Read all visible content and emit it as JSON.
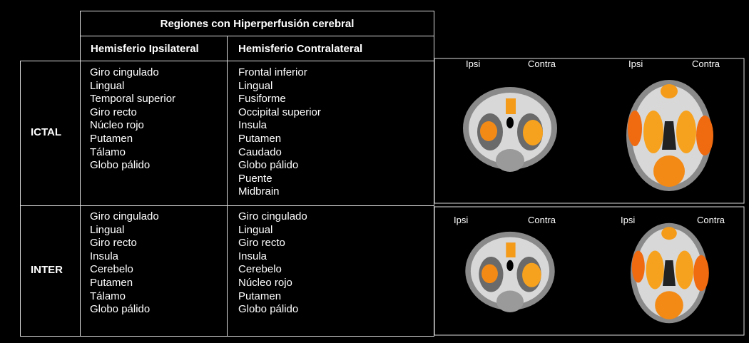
{
  "header": {
    "title": "Regiones con Hiperperfusión cerebral",
    "columns": [
      "Hemisferio Ipsilateral",
      "Hemisferio Contralateral"
    ]
  },
  "rows": [
    {
      "label": "ICTAL",
      "ipsilateral": [
        "Giro cingulado",
        "Lingual",
        "Temporal superior",
        "Giro recto",
        "Núcleo rojo",
        "Putamen",
        "Tálamo",
        "Globo pálido"
      ],
      "contralateral": [
        "Frontal inferior",
        "Lingual",
        "Fusiforme",
        "Occipital superior",
        "Insula",
        "Putamen",
        "Caudado",
        "Globo pálido",
        "Puente",
        "Midbrain"
      ],
      "images": [
        {
          "left": "Ipsi",
          "right": "Contra"
        },
        {
          "left": "Ipsi",
          "right": "Contra"
        }
      ]
    },
    {
      "label": "INTER",
      "ipsilateral": [
        "Giro cingulado",
        "Lingual",
        "Giro recto",
        "Insula",
        "Cerebelo",
        "Putamen",
        "Tálamo",
        "Globo pálido"
      ],
      "contralateral": [
        "Giro cingulado",
        "Lingual",
        "Giro recto",
        "Insula",
        "Cerebelo",
        "Núcleo rojo",
        "Putamen",
        "Globo pálido"
      ],
      "images": [
        {
          "left": "Ipsi",
          "right": "Contra"
        },
        {
          "left": "Ipsi",
          "right": "Contra"
        }
      ]
    }
  ]
}
